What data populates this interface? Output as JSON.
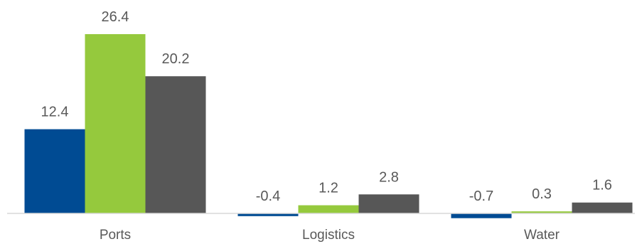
{
  "chart_data": {
    "type": "bar",
    "title": "",
    "xlabel": "",
    "ylabel": "",
    "categories": [
      "Ports",
      "Logistics",
      "Water"
    ],
    "series": [
      {
        "values": [
          12.4,
          -0.4,
          -0.7
        ],
        "color": "#004B93"
      },
      {
        "values": [
          26.4,
          1.2,
          0.3
        ],
        "color": "#95C93D"
      },
      {
        "values": [
          20.2,
          2.8,
          1.6
        ],
        "color": "#575757"
      }
    ],
    "ylim": [
      -0.7,
      26.4
    ],
    "grid": false,
    "legend": "none",
    "axis_line_color": "#D9D9D9",
    "label_color": "#595959"
  }
}
